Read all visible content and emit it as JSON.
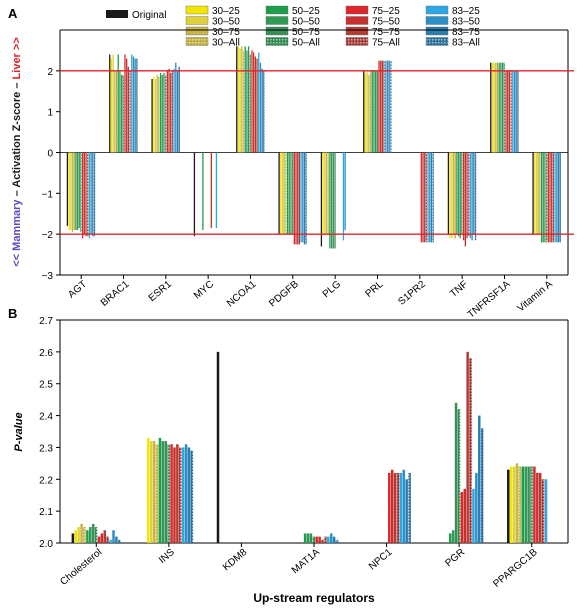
{
  "panels": {
    "a_label": "A",
    "b_label": "B"
  },
  "legend": {
    "original_label": "Original",
    "original_color": "#1a1a1a",
    "groups": [
      {
        "entries": [
          {
            "label": "30–25",
            "color": "#f2e600",
            "pattern": "solid"
          },
          {
            "label": "30–50",
            "color": "#e0d23a",
            "pattern": "solid"
          },
          {
            "label": "30–75",
            "color": "#c9b64a",
            "pattern": "solid"
          },
          {
            "label": "30–All",
            "color": "#bfae3a",
            "pattern": "dotted"
          }
        ]
      },
      {
        "entries": [
          {
            "label": "50–25",
            "color": "#1aa04a",
            "pattern": "solid"
          },
          {
            "label": "50–50",
            "color": "#2e9a52",
            "pattern": "solid"
          },
          {
            "label": "50–75",
            "color": "#3a8f58",
            "pattern": "solid"
          },
          {
            "label": "50–All",
            "color": "#2f8a50",
            "pattern": "dotted"
          }
        ]
      },
      {
        "entries": [
          {
            "label": "75–25",
            "color": "#e0262b",
            "pattern": "solid"
          },
          {
            "label": "75–50",
            "color": "#c8302e",
            "pattern": "solid"
          },
          {
            "label": "75–75",
            "color": "#b43a34",
            "pattern": "solid"
          },
          {
            "label": "75–All",
            "color": "#a33a33",
            "pattern": "dotted"
          }
        ]
      },
      {
        "entries": [
          {
            "label": "83–25",
            "color": "#2aa9e6",
            "pattern": "solid"
          },
          {
            "label": "83–50",
            "color": "#2b90c8",
            "pattern": "solid"
          },
          {
            "label": "83–75",
            "color": "#2a7fae",
            "pattern": "solid"
          },
          {
            "label": "83–All",
            "color": "#2a6f9a",
            "pattern": "dotted"
          }
        ]
      }
    ]
  },
  "chart_data": [
    {
      "type": "bar",
      "panel": "A",
      "ylabel_parts": [
        "<< Mammary",
        " – Activation Z-score – ",
        "Liver >>"
      ],
      "ylabel_colors": [
        "#5b4bbf",
        "#1a1a1a",
        "#e0262b"
      ],
      "ylim": [
        -3,
        3
      ],
      "yticks": [
        -3,
        -2,
        -1,
        0,
        1,
        2
      ],
      "reference_lines": [
        2,
        -2
      ],
      "reference_line_color": "#e0262b",
      "categories": [
        "AGT",
        "BRAC1",
        "ESR1",
        "MYC",
        "NCOA1",
        "PDGFB",
        "PLG",
        "PRL",
        "S1PR2",
        "TNF",
        "TNFRSF1A",
        "Vitamin A"
      ],
      "series_order": [
        "Original",
        "30–25",
        "30–50",
        "30–75",
        "30–All",
        "50–25",
        "50–50",
        "50–75",
        "50–All",
        "75–25",
        "75–50",
        "75–75",
        "75–All",
        "83–25",
        "83–50",
        "83–75",
        "83–All"
      ],
      "values": {
        "AGT": [
          -1.8,
          -1.9,
          -1.9,
          -1.95,
          -1.9,
          -1.9,
          -1.9,
          -1.85,
          -1.95,
          -2.1,
          -2.0,
          -2.05,
          -2.05,
          -2.1,
          -2.0,
          -2.05,
          -2.05
        ],
        "BRAC1": [
          2.4,
          2.3,
          2.4,
          2.0,
          2.0,
          2.4,
          2.0,
          1.9,
          1.9,
          2.4,
          2.3,
          2.1,
          2.0,
          2.4,
          2.35,
          2.3,
          2.3
        ],
        "ESR1": [
          1.8,
          1.85,
          1.8,
          1.9,
          1.85,
          1.95,
          1.9,
          1.95,
          1.9,
          2.0,
          2.05,
          1.95,
          2.0,
          2.05,
          2.2,
          2.0,
          2.1
        ],
        "MYC": [
          -2.05,
          null,
          null,
          null,
          null,
          -1.9,
          null,
          null,
          null,
          null,
          -1.85,
          null,
          null,
          -1.85,
          null,
          null,
          null
        ],
        "NCOA1": [
          2.6,
          2.6,
          2.55,
          2.6,
          2.5,
          2.6,
          2.5,
          2.6,
          2.4,
          2.5,
          2.45,
          2.35,
          2.3,
          2.45,
          2.2,
          2.05,
          2.0
        ],
        "PDGFB": [
          -2.0,
          -2.0,
          -2.0,
          -2.0,
          -2.0,
          -2.0,
          -2.0,
          -2.0,
          -2.0,
          -2.25,
          -2.25,
          -2.25,
          -2.25,
          -2.2,
          -2.2,
          -2.25,
          -2.25
        ],
        "PLG": [
          -2.3,
          -2.0,
          -2.0,
          -2.0,
          -2.0,
          -2.35,
          -2.35,
          -2.35,
          -2.35,
          null,
          null,
          null,
          null,
          -2.15,
          -1.9,
          null,
          null
        ],
        "PRL": [
          2.0,
          1.95,
          2.0,
          1.9,
          2.0,
          2.0,
          2.0,
          2.0,
          2.0,
          2.25,
          2.25,
          2.25,
          2.25,
          2.25,
          2.25,
          2.25,
          2.25
        ],
        "S1PR2": [
          null,
          null,
          null,
          null,
          null,
          null,
          null,
          null,
          null,
          -2.2,
          -2.2,
          -2.2,
          -2.2,
          -2.2,
          -2.2,
          -2.2,
          -2.2
        ],
        "TNF": [
          -2.0,
          -2.1,
          -2.1,
          -2.0,
          -2.1,
          -2.0,
          -2.05,
          -2.1,
          -2.0,
          -2.15,
          -2.3,
          -2.1,
          -2.05,
          -2.1,
          -2.15,
          -2.0,
          -2.15
        ],
        "TNFRSF1A": [
          2.2,
          2.2,
          2.2,
          2.2,
          2.2,
          2.2,
          2.2,
          2.2,
          2.2,
          2.0,
          2.0,
          2.0,
          2.0,
          2.0,
          2.0,
          2.0,
          2.0
        ],
        "Vitamin A": [
          -2.0,
          -2.0,
          -2.0,
          -2.0,
          -2.0,
          -2.2,
          -2.2,
          -2.2,
          -2.2,
          -2.2,
          -2.2,
          -2.2,
          -2.2,
          -2.2,
          -2.2,
          -2.2,
          -2.2
        ]
      }
    },
    {
      "type": "bar",
      "panel": "B",
      "ylabel": "P-value",
      "xlabel": "Up-stream regulators",
      "ylim": [
        2.0,
        2.7
      ],
      "yticks": [
        2.0,
        2.1,
        2.2,
        2.3,
        2.4,
        2.5,
        2.6,
        2.7
      ],
      "categories": [
        "Cholesterol",
        "INS",
        "KDM8",
        "MAT1A",
        "NPC1",
        "PGR",
        "PPARGC1B"
      ],
      "series_order": [
        "Original",
        "30–25",
        "30–50",
        "30–75",
        "30–All",
        "50–25",
        "50–50",
        "50–75",
        "50–All",
        "75–25",
        "75–50",
        "75–75",
        "75–All",
        "83–25",
        "83–50",
        "83–75",
        "83–All"
      ],
      "values": {
        "Cholesterol": [
          2.03,
          2.04,
          2.05,
          2.06,
          2.05,
          2.04,
          2.05,
          2.06,
          2.05,
          2.02,
          2.03,
          2.04,
          2.02,
          2.01,
          2.04,
          2.02,
          2.01
        ],
        "INS": [
          null,
          2.33,
          2.32,
          2.32,
          2.31,
          2.33,
          2.32,
          2.32,
          2.31,
          2.31,
          2.3,
          2.31,
          2.3,
          2.3,
          2.31,
          2.3,
          2.29
        ],
        "KDM8": [
          2.6,
          null,
          null,
          null,
          null,
          null,
          null,
          null,
          null,
          null,
          null,
          null,
          null,
          null,
          null,
          null,
          null
        ],
        "MAT1A": [
          null,
          null,
          null,
          null,
          null,
          2.03,
          2.03,
          2.03,
          2.02,
          2.02,
          2.02,
          2.01,
          2.02,
          2.02,
          2.03,
          2.02,
          2.01
        ],
        "NPC1": [
          null,
          null,
          null,
          null,
          null,
          null,
          null,
          null,
          null,
          2.22,
          2.23,
          2.22,
          2.22,
          2.22,
          2.23,
          2.2,
          2.22
        ],
        "PGR": [
          null,
          null,
          null,
          null,
          null,
          2.03,
          2.04,
          2.44,
          2.42,
          2.16,
          2.17,
          2.6,
          2.58,
          2.17,
          2.22,
          2.4,
          2.36
        ],
        "PPARGC1B": [
          2.23,
          2.24,
          2.24,
          2.25,
          2.24,
          2.24,
          2.24,
          2.24,
          2.24,
          2.24,
          2.22,
          2.22,
          2.2,
          2.2,
          null,
          null,
          null
        ]
      }
    }
  ]
}
